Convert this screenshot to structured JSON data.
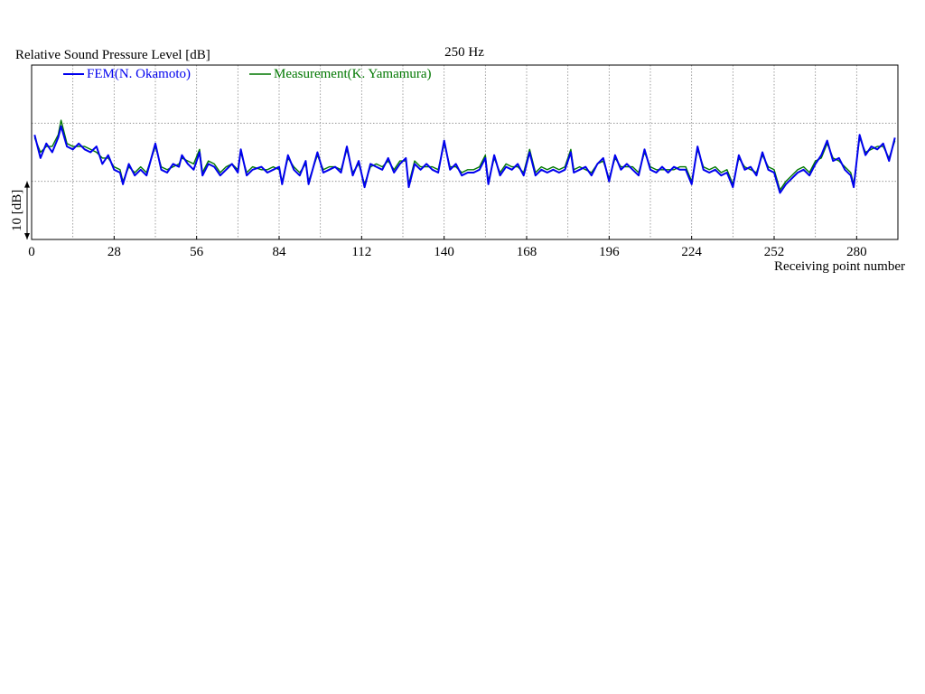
{
  "chart_data": {
    "type": "line",
    "title": "250 Hz",
    "ylabel": "Relative Sound Pressure Level [dB]",
    "xlabel": "Receiving point number",
    "scale_bar_label": "10 [dB]",
    "xlim": [
      0,
      294
    ],
    "x_ticks": [
      0,
      28,
      56,
      84,
      112,
      140,
      168,
      196,
      224,
      252,
      280
    ],
    "x_tick_labels": [
      "0",
      "28",
      "56",
      "84",
      "112",
      "140",
      "168",
      "196",
      "224",
      "252",
      "280"
    ],
    "ylim": [
      -10,
      20
    ],
    "grid": true,
    "legend_position": "top-left",
    "series": [
      {
        "name": "FEM(N. Okamoto)",
        "color": "#0000ee",
        "points": [
          [
            1,
            8
          ],
          [
            3,
            4
          ],
          [
            5,
            6.5
          ],
          [
            7,
            5
          ],
          [
            9,
            7.5
          ],
          [
            10,
            9.5
          ],
          [
            12,
            6
          ],
          [
            14,
            5.5
          ],
          [
            16,
            6.5
          ],
          [
            18,
            5.5
          ],
          [
            20,
            5
          ],
          [
            22,
            6
          ],
          [
            24,
            3
          ],
          [
            26,
            4.5
          ],
          [
            28,
            2
          ],
          [
            30,
            1.5
          ],
          [
            31,
            -0.5
          ],
          [
            33,
            3
          ],
          [
            35,
            1
          ],
          [
            37,
            2
          ],
          [
            39,
            1
          ],
          [
            42,
            6.5
          ],
          [
            44,
            2
          ],
          [
            46,
            1.5
          ],
          [
            48,
            3
          ],
          [
            50,
            2.5
          ],
          [
            51,
            4.5
          ],
          [
            53,
            3
          ],
          [
            55,
            2
          ],
          [
            57,
            5
          ],
          [
            58,
            1
          ],
          [
            60,
            3
          ],
          [
            62,
            2.5
          ],
          [
            64,
            1
          ],
          [
            66,
            2
          ],
          [
            68,
            3
          ],
          [
            70,
            1.5
          ],
          [
            71,
            5.5
          ],
          [
            73,
            1
          ],
          [
            75,
            2
          ],
          [
            78,
            2.5
          ],
          [
            80,
            1.5
          ],
          [
            82,
            2
          ],
          [
            84,
            2.5
          ],
          [
            85,
            -0.5
          ],
          [
            87,
            4.5
          ],
          [
            89,
            2
          ],
          [
            91,
            1
          ],
          [
            93,
            3.5
          ],
          [
            94,
            -0.5
          ],
          [
            97,
            5
          ],
          [
            99,
            1.5
          ],
          [
            101,
            2
          ],
          [
            103,
            2.5
          ],
          [
            105,
            1.5
          ],
          [
            107,
            6
          ],
          [
            109,
            1
          ],
          [
            111,
            3.5
          ],
          [
            113,
            -1
          ],
          [
            115,
            3
          ],
          [
            117,
            2.5
          ],
          [
            119,
            2
          ],
          [
            121,
            4
          ],
          [
            123,
            1.5
          ],
          [
            125,
            3
          ],
          [
            127,
            4
          ],
          [
            128,
            -1
          ],
          [
            130,
            3
          ],
          [
            132,
            2
          ],
          [
            134,
            3
          ],
          [
            136,
            2
          ],
          [
            138,
            1.5
          ],
          [
            140,
            7
          ],
          [
            142,
            2
          ],
          [
            144,
            3
          ],
          [
            146,
            1
          ],
          [
            148,
            1.5
          ],
          [
            150,
            1.5
          ],
          [
            152,
            2
          ],
          [
            154,
            4
          ],
          [
            155,
            -0.5
          ],
          [
            157,
            4.5
          ],
          [
            159,
            1
          ],
          [
            161,
            2.5
          ],
          [
            163,
            2
          ],
          [
            165,
            3
          ],
          [
            167,
            1
          ],
          [
            169,
            5
          ],
          [
            171,
            1
          ],
          [
            173,
            2
          ],
          [
            175,
            1.5
          ],
          [
            177,
            2
          ],
          [
            179,
            1.5
          ],
          [
            181,
            2
          ],
          [
            183,
            5
          ],
          [
            184,
            1.5
          ],
          [
            186,
            2
          ],
          [
            188,
            2.5
          ],
          [
            190,
            1
          ],
          [
            192,
            3
          ],
          [
            194,
            4
          ],
          [
            196,
            0
          ],
          [
            198,
            4.5
          ],
          [
            200,
            2
          ],
          [
            202,
            3
          ],
          [
            204,
            2
          ],
          [
            206,
            1
          ],
          [
            208,
            5.5
          ],
          [
            210,
            2
          ],
          [
            212,
            1.5
          ],
          [
            214,
            2.5
          ],
          [
            216,
            1.5
          ],
          [
            218,
            2.5
          ],
          [
            220,
            2
          ],
          [
            222,
            2
          ],
          [
            224,
            -0.5
          ],
          [
            226,
            6
          ],
          [
            228,
            2
          ],
          [
            230,
            1.5
          ],
          [
            232,
            2
          ],
          [
            234,
            1
          ],
          [
            236,
            1.5
          ],
          [
            238,
            -1
          ],
          [
            240,
            4.5
          ],
          [
            242,
            2
          ],
          [
            244,
            2.5
          ],
          [
            246,
            1
          ],
          [
            248,
            5
          ],
          [
            250,
            2
          ],
          [
            252,
            1.5
          ],
          [
            254,
            -2
          ],
          [
            256,
            -0.5
          ],
          [
            258,
            0.5
          ],
          [
            260,
            1.5
          ],
          [
            262,
            2
          ],
          [
            264,
            1
          ],
          [
            266,
            3
          ],
          [
            268,
            4.5
          ],
          [
            270,
            7
          ],
          [
            272,
            3.5
          ],
          [
            274,
            4
          ],
          [
            276,
            2
          ],
          [
            278,
            1
          ],
          [
            279,
            -1
          ],
          [
            281,
            8
          ],
          [
            283,
            4.5
          ],
          [
            285,
            6
          ],
          [
            287,
            5.5
          ],
          [
            289,
            6.5
          ],
          [
            291,
            3.5
          ],
          [
            293,
            7.5
          ]
        ]
      },
      {
        "name": "Measurement(K. Yamamura)",
        "color": "#007700",
        "points": [
          [
            1,
            7.5
          ],
          [
            3,
            5
          ],
          [
            5,
            6
          ],
          [
            7,
            6
          ],
          [
            9,
            8
          ],
          [
            10,
            10.5
          ],
          [
            12,
            6.5
          ],
          [
            14,
            6
          ],
          [
            16,
            6
          ],
          [
            18,
            6
          ],
          [
            20,
            5.5
          ],
          [
            22,
            5
          ],
          [
            24,
            4
          ],
          [
            26,
            4
          ],
          [
            28,
            2.5
          ],
          [
            30,
            2
          ],
          [
            31,
            0
          ],
          [
            33,
            2.5
          ],
          [
            35,
            1.5
          ],
          [
            37,
            2.5
          ],
          [
            39,
            1.5
          ],
          [
            42,
            6
          ],
          [
            44,
            2.5
          ],
          [
            46,
            2
          ],
          [
            48,
            2.5
          ],
          [
            50,
            3
          ],
          [
            51,
            4
          ],
          [
            53,
            3.5
          ],
          [
            55,
            3
          ],
          [
            57,
            5.5
          ],
          [
            58,
            1.5
          ],
          [
            60,
            3.5
          ],
          [
            62,
            3
          ],
          [
            64,
            1.5
          ],
          [
            66,
            2.5
          ],
          [
            68,
            3
          ],
          [
            70,
            2
          ],
          [
            71,
            5
          ],
          [
            73,
            1.5
          ],
          [
            75,
            2.5
          ],
          [
            78,
            2
          ],
          [
            80,
            2
          ],
          [
            82,
            2.5
          ],
          [
            84,
            2
          ],
          [
            85,
            0
          ],
          [
            87,
            4
          ],
          [
            89,
            2.5
          ],
          [
            91,
            1.5
          ],
          [
            93,
            3
          ],
          [
            94,
            0
          ],
          [
            97,
            4.5
          ],
          [
            99,
            2
          ],
          [
            101,
            2.5
          ],
          [
            103,
            2.5
          ],
          [
            105,
            2
          ],
          [
            107,
            5.5
          ],
          [
            109,
            1.5
          ],
          [
            111,
            3
          ],
          [
            113,
            -0.5
          ],
          [
            115,
            2.5
          ],
          [
            117,
            3
          ],
          [
            119,
            2.5
          ],
          [
            121,
            3.5
          ],
          [
            123,
            2
          ],
          [
            125,
            3.5
          ],
          [
            127,
            3.5
          ],
          [
            128,
            -0.5
          ],
          [
            130,
            3.5
          ],
          [
            132,
            2.5
          ],
          [
            134,
            2.5
          ],
          [
            136,
            2.5
          ],
          [
            138,
            2
          ],
          [
            140,
            6.5
          ],
          [
            142,
            2.5
          ],
          [
            144,
            2.5
          ],
          [
            146,
            1.5
          ],
          [
            148,
            2
          ],
          [
            150,
            2
          ],
          [
            152,
            2.5
          ],
          [
            154,
            4.5
          ],
          [
            155,
            0
          ],
          [
            157,
            4
          ],
          [
            159,
            1.5
          ],
          [
            161,
            3
          ],
          [
            163,
            2.5
          ],
          [
            165,
            2.5
          ],
          [
            167,
            1.5
          ],
          [
            169,
            5.5
          ],
          [
            171,
            1.5
          ],
          [
            173,
            2.5
          ],
          [
            175,
            2
          ],
          [
            177,
            2.5
          ],
          [
            179,
            2
          ],
          [
            181,
            2.5
          ],
          [
            183,
            5.5
          ],
          [
            184,
            2
          ],
          [
            186,
            2.5
          ],
          [
            188,
            2
          ],
          [
            190,
            1.5
          ],
          [
            192,
            3
          ],
          [
            194,
            3.5
          ],
          [
            196,
            0.5
          ],
          [
            198,
            4
          ],
          [
            200,
            2.5
          ],
          [
            202,
            2.5
          ],
          [
            204,
            2.5
          ],
          [
            206,
            1.5
          ],
          [
            208,
            5
          ],
          [
            210,
            2.5
          ],
          [
            212,
            2
          ],
          [
            214,
            2
          ],
          [
            216,
            2
          ],
          [
            218,
            2
          ],
          [
            220,
            2.5
          ],
          [
            222,
            2.5
          ],
          [
            224,
            0
          ],
          [
            226,
            5.5
          ],
          [
            228,
            2.5
          ],
          [
            230,
            2
          ],
          [
            232,
            2.5
          ],
          [
            234,
            1.5
          ],
          [
            236,
            2
          ],
          [
            238,
            -0.5
          ],
          [
            240,
            4
          ],
          [
            242,
            2.5
          ],
          [
            244,
            2
          ],
          [
            246,
            1.5
          ],
          [
            248,
            4.5
          ],
          [
            250,
            2.5
          ],
          [
            252,
            2
          ],
          [
            254,
            -1.5
          ],
          [
            256,
            0
          ],
          [
            258,
            1
          ],
          [
            260,
            2
          ],
          [
            262,
            2.5
          ],
          [
            264,
            1.5
          ],
          [
            266,
            3.5
          ],
          [
            268,
            4
          ],
          [
            270,
            6.5
          ],
          [
            272,
            4
          ],
          [
            274,
            3.5
          ],
          [
            276,
            2.5
          ],
          [
            278,
            1.5
          ],
          [
            279,
            -0.5
          ],
          [
            281,
            7.5
          ],
          [
            283,
            5
          ],
          [
            285,
            5.5
          ],
          [
            287,
            6
          ],
          [
            289,
            6
          ],
          [
            291,
            4
          ],
          [
            293,
            7
          ]
        ]
      }
    ]
  }
}
